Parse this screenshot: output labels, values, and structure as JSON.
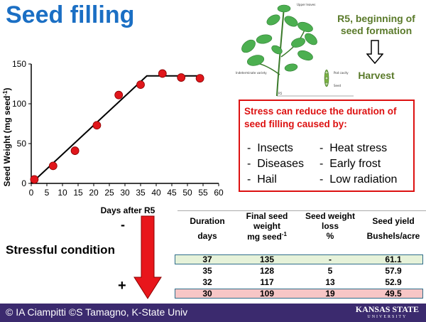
{
  "title": "Seed filling",
  "stage": {
    "r5": "R5, beginning of seed formation",
    "harvest": "Harvest",
    "arrow_icon": "down-outline-arrow-icon"
  },
  "plant_labels": {
    "l1": "Upper leaves",
    "l2": "Indeterminate variety",
    "l3": "Pod cavity",
    "l4": "Seed",
    "l5": "R5"
  },
  "stress": {
    "heading": "Stress can reduce the duration of seed filling caused by:",
    "left_items": [
      "Insects",
      "Diseases",
      "Hail"
    ],
    "right_items": [
      "Heat stress",
      "Early frost",
      "Low radiation"
    ],
    "bullet": "-"
  },
  "chart_data": {
    "type": "scatter",
    "ylabel": "Seed Weight (mg seed",
    "ylabel_sup": "-1",
    "ylabel_end": ")",
    "xlabel": "Days after R5",
    "xlim": [
      0,
      60
    ],
    "ylim": [
      0,
      150
    ],
    "xticks": [
      0,
      5,
      10,
      15,
      20,
      25,
      30,
      35,
      40,
      45,
      50,
      55,
      60
    ],
    "yticks": [
      0,
      50,
      100,
      150
    ],
    "points": [
      {
        "x": 1,
        "y": 5
      },
      {
        "x": 7,
        "y": 22
      },
      {
        "x": 14,
        "y": 41
      },
      {
        "x": 21,
        "y": 73
      },
      {
        "x": 28,
        "y": 111
      },
      {
        "x": 35,
        "y": 124
      },
      {
        "x": 42,
        "y": 138
      },
      {
        "x": 48,
        "y": 133
      },
      {
        "x": 54,
        "y": 132
      }
    ],
    "fit_line": [
      {
        "x": 0,
        "y": 0
      },
      {
        "x": 37,
        "y": 135
      },
      {
        "x": 55,
        "y": 135
      }
    ],
    "point_color": "#e0161b",
    "line_color": "#000000"
  },
  "condition": {
    "label": "Stressful condition",
    "minus": "-",
    "plus": "+",
    "arrow_color": "#e8161b"
  },
  "table": {
    "headers": [
      "Duration",
      "Final seed weight",
      "Seed weight loss",
      "Seed yield"
    ],
    "units": [
      "days",
      "mg seed",
      "%",
      "Bushels/acre"
    ],
    "unit_sup": "-1",
    "rows": [
      {
        "duration": "37",
        "weight": "135",
        "loss": "-",
        "yield": "61.1"
      },
      {
        "duration": "35",
        "weight": "128",
        "loss": "5",
        "yield": "57.9"
      },
      {
        "duration": "32",
        "weight": "117",
        "loss": "13",
        "yield": "52.9"
      },
      {
        "duration": "30",
        "weight": "109",
        "loss": "19",
        "yield": "49.5"
      }
    ],
    "highlight_first": "#e6f2d9",
    "highlight_last": "#f7c6c6"
  },
  "footer": {
    "credit": "© IA Ciampitti ©S Tamagno, K-State Univ",
    "logo_main": "KANSAS STATE",
    "logo_sub": "UNIVERSITY",
    "bg": "#3b2a6e"
  }
}
